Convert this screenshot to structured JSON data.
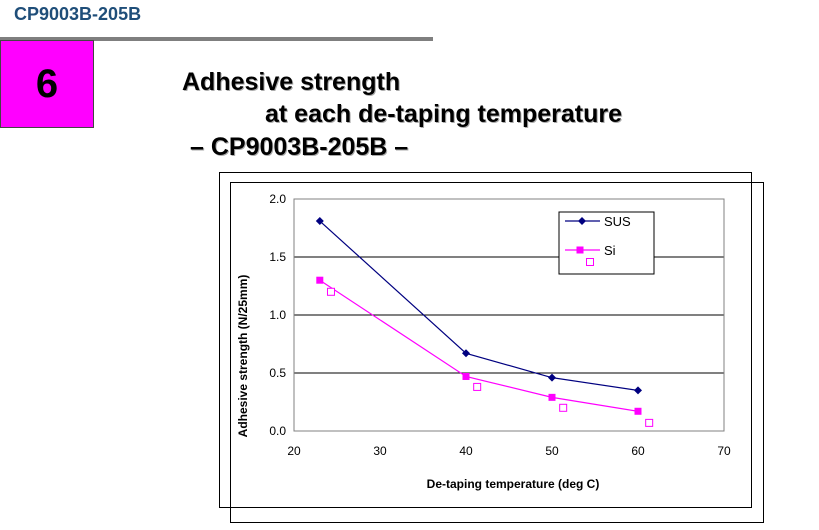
{
  "header": {
    "doc_code": "CP9003B-205B",
    "section_number": "6",
    "title_line1": "Adhesive strength",
    "title_line2": "at each de-taping temperature",
    "title_line3": "– CP9003B-205B –"
  },
  "chart_data": {
    "type": "line",
    "xlabel": "De-taping temperature (deg C)",
    "ylabel": "Adhesive strength  (N/25mm)",
    "xlim": [
      20,
      70
    ],
    "ylim": [
      0.0,
      2.0
    ],
    "x_ticks": [
      "20",
      "30",
      "40",
      "50",
      "60",
      "70"
    ],
    "y_ticks": [
      "0.0",
      "0.5",
      "1.0",
      "1.5",
      "2.0"
    ],
    "grid": "horizontal",
    "legend_position": "top-right",
    "series": [
      {
        "name": "SUS",
        "marker": "diamond-filled",
        "color": "#000080",
        "x": [
          23,
          40,
          50,
          60
        ],
        "y": [
          1.81,
          0.67,
          0.46,
          0.35
        ]
      },
      {
        "name": "Si",
        "marker": "square-filled",
        "color": "#ff00ff",
        "x": [
          23,
          40,
          50,
          60
        ],
        "y": [
          1.3,
          0.47,
          0.29,
          0.17
        ]
      }
    ],
    "extra_markers": {
      "marker": "square-open",
      "color": "#ff00ff",
      "x": [
        24.3,
        41.3,
        51.3,
        61.3
      ],
      "y": [
        1.2,
        0.38,
        0.2,
        0.07
      ]
    }
  }
}
